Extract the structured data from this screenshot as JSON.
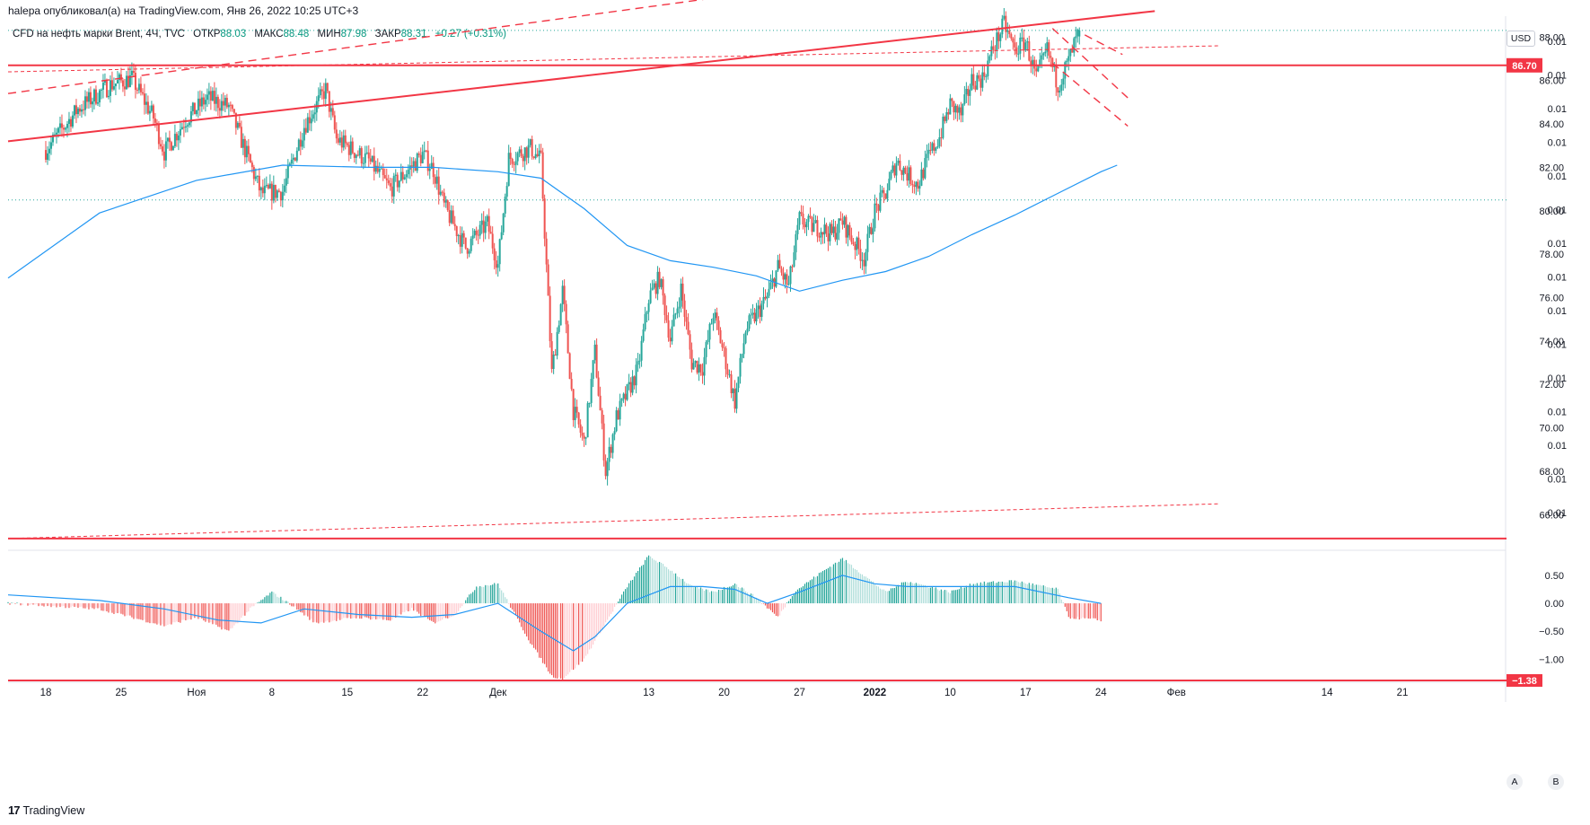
{
  "header": {
    "published": "halepa опубликовал(а) на TradingView.com, Янв 26, 2022 10:25 UTC+3",
    "symbol": "CFD на нефть марки Brent, 4Ч, TVC",
    "open_label": "ОТКР",
    "open": "88.03",
    "high_label": "МАКС",
    "high": "88.48",
    "low_label": "МИН",
    "low": "87.98",
    "close_label": "ЗАКР",
    "close": "88.31",
    "change": "+0.27 (+0.31%)"
  },
  "currency": "USD",
  "footer": {
    "logo_mark": "17",
    "logo_text": "TradingView",
    "btn_a": "A",
    "btn_b": "B"
  },
  "colors": {
    "up": "#26a69a",
    "down": "#ef5350",
    "ma": "#2196f3",
    "line": "#f23645",
    "text": "#131722"
  },
  "chart_data": {
    "type": "candlestick",
    "title": "CFD на нефть марки Brent, 4Ч, TVC",
    "price_axis": {
      "range": [
        64.4,
        88.8
      ],
      "ticks": [
        88.0,
        86.0,
        84.0,
        82.0,
        80.0,
        78.0,
        76.0,
        74.0,
        72.0,
        70.0,
        68.0,
        66.0
      ],
      "tick_labels": [
        "88.00",
        "86.00",
        "84.00",
        "82.00",
        "80.00",
        "78.00",
        "76.00",
        "74.00",
        "72.00",
        "70.00",
        "68.00",
        "66.00"
      ],
      "secondary_labels": [
        "0.01",
        "0.01",
        "0.01",
        "0.01",
        "0.01",
        "0.01",
        "0.01",
        "0.01",
        "0.01",
        "0.01",
        "0.01",
        "0.01",
        "0.01",
        "0.01",
        "0.01"
      ],
      "current_price_label": "86.70",
      "current_price": 86.7
    },
    "time_axis": {
      "labels": [
        "18",
        "25",
        "Ноя",
        "8",
        "15",
        "22",
        "Дек",
        "13",
        "20",
        "27",
        "2022",
        "10",
        "17",
        "24",
        "Фев",
        "14",
        "21"
      ],
      "label_pos": [
        0,
        7,
        14,
        21,
        28,
        35,
        42,
        56,
        63,
        70,
        77,
        84,
        91,
        98,
        105,
        119,
        126
      ],
      "day_range": [
        -3.5,
        135.5
      ],
      "candles_per_day": 6
    },
    "close_anchors": [
      [
        0,
        82.8
      ],
      [
        3,
        84.7
      ],
      [
        6,
        85.8
      ],
      [
        8,
        86.1
      ],
      [
        10,
        84.3
      ],
      [
        11,
        82.7
      ],
      [
        13,
        84.2
      ],
      [
        15,
        85.2
      ],
      [
        17,
        84.8
      ],
      [
        20,
        80.8
      ],
      [
        22,
        80.9
      ],
      [
        24,
        83.9
      ],
      [
        26,
        85.6
      ],
      [
        27,
        83.3
      ],
      [
        30,
        82.3
      ],
      [
        32,
        81.0
      ],
      [
        35,
        82.6
      ],
      [
        36,
        81.9
      ],
      [
        37,
        80.2
      ],
      [
        39,
        78.3
      ],
      [
        41,
        79.4
      ],
      [
        42,
        77.5
      ],
      [
        43,
        82.4
      ],
      [
        45,
        82.9
      ],
      [
        46,
        82.3
      ],
      [
        47,
        72.5
      ],
      [
        48,
        76.3
      ],
      [
        49,
        70.8
      ],
      [
        50,
        69.3
      ],
      [
        51,
        73.5
      ],
      [
        52,
        68.0
      ],
      [
        53,
        70.5
      ],
      [
        55,
        72.7
      ],
      [
        56,
        76.0
      ],
      [
        57,
        76.9
      ],
      [
        58,
        74.1
      ],
      [
        59,
        76.4
      ],
      [
        60,
        73.0
      ],
      [
        61,
        72.8
      ],
      [
        62,
        75.3
      ],
      [
        63,
        73.4
      ],
      [
        64,
        71.2
      ],
      [
        65,
        74.5
      ],
      [
        67,
        76.0
      ],
      [
        68,
        77.4
      ],
      [
        69,
        76.5
      ],
      [
        70,
        79.6
      ],
      [
        71,
        79.3
      ],
      [
        72,
        79.2
      ],
      [
        73,
        78.9
      ],
      [
        74,
        79.5
      ],
      [
        75,
        78.6
      ],
      [
        76,
        77.8
      ],
      [
        77,
        80.0
      ],
      [
        78,
        80.8
      ],
      [
        79,
        82.3
      ],
      [
        80,
        81.7
      ],
      [
        81,
        81.2
      ],
      [
        82,
        82.5
      ],
      [
        83,
        83.4
      ],
      [
        84,
        84.9
      ],
      [
        85,
        84.4
      ],
      [
        86,
        86.0
      ],
      [
        87,
        86.1
      ],
      [
        88,
        87.5
      ],
      [
        89,
        88.6
      ],
      [
        90,
        87.4
      ],
      [
        91,
        87.8
      ],
      [
        92,
        86.1
      ],
      [
        93,
        87.4
      ],
      [
        94,
        85.8
      ],
      [
        95,
        86.9
      ],
      [
        96,
        88.31
      ]
    ],
    "ma_points": [
      [
        -3.5,
        76.9
      ],
      [
        5,
        79.9
      ],
      [
        14,
        81.4
      ],
      [
        22,
        82.1
      ],
      [
        30,
        82.0
      ],
      [
        36,
        82.0
      ],
      [
        42,
        81.8
      ],
      [
        46,
        81.5
      ],
      [
        50,
        80.1
      ],
      [
        54,
        78.4
      ],
      [
        58,
        77.7
      ],
      [
        62,
        77.4
      ],
      [
        66,
        77.0
      ],
      [
        70,
        76.3
      ],
      [
        74,
        76.8
      ],
      [
        78,
        77.2
      ],
      [
        82,
        77.9
      ],
      [
        86,
        78.9
      ],
      [
        90,
        79.8
      ],
      [
        94,
        80.8
      ],
      [
        98,
        81.8
      ],
      [
        99.5,
        82.1
      ]
    ],
    "lines": [
      {
        "kind": "solid",
        "from": [
          -3.5,
          83.2
        ],
        "to": [
          103,
          89.2
        ]
      },
      {
        "kind": "dashed",
        "from": [
          -3.5,
          85.4
        ],
        "to": [
          65,
          90.0
        ]
      },
      {
        "kind": "dotted",
        "from": [
          -3.5,
          86.4
        ],
        "to": [
          109,
          87.6
        ]
      },
      {
        "kind": "dotted",
        "from": [
          -3.5,
          64.9
        ],
        "to": [
          109,
          66.5
        ]
      },
      {
        "kind": "dashed",
        "from": [
          93.5,
          88.4
        ],
        "to": [
          100.5,
          85.2
        ]
      },
      {
        "kind": "dashed",
        "from": [
          93.5,
          86.8
        ],
        "to": [
          100.5,
          83.9
        ]
      },
      {
        "kind": "dashed",
        "from": [
          96.5,
          88.1
        ],
        "to": [
          100,
          87.2
        ]
      }
    ],
    "horizontal_levels": [
      86.7,
      64.9
    ],
    "oscillator": {
      "type": "histogram+signal",
      "range": [
        -1.38,
        0.9
      ],
      "ticks": [
        0.5,
        0.0,
        -0.5,
        -1.0
      ],
      "tick_labels": [
        "0.50",
        "0.00",
        "−0.50",
        "−1.00"
      ],
      "level_label": "−1.38",
      "level": -1.38,
      "hist_anchors": [
        [
          -3.5,
          0.0
        ],
        [
          5,
          -0.1
        ],
        [
          8,
          -0.25
        ],
        [
          11,
          -0.4
        ],
        [
          14,
          -0.25
        ],
        [
          17,
          -0.5
        ],
        [
          19,
          -0.1
        ],
        [
          21,
          0.2
        ],
        [
          23,
          -0.05
        ],
        [
          25,
          -0.35
        ],
        [
          29,
          -0.25
        ],
        [
          32,
          -0.3
        ],
        [
          34,
          -0.1
        ],
        [
          36,
          -0.35
        ],
        [
          38,
          -0.2
        ],
        [
          40,
          0.3
        ],
        [
          42,
          0.35
        ],
        [
          43,
          0.0
        ],
        [
          45,
          -0.7
        ],
        [
          47,
          -1.3
        ],
        [
          48,
          -1.35
        ],
        [
          50,
          -1.0
        ],
        [
          52,
          -0.35
        ],
        [
          54,
          0.3
        ],
        [
          56,
          0.85
        ],
        [
          58,
          0.6
        ],
        [
          60,
          0.3
        ],
        [
          62,
          0.2
        ],
        [
          64,
          0.35
        ],
        [
          66,
          0.1
        ],
        [
          68,
          -0.25
        ],
        [
          69.5,
          0.2
        ],
        [
          72,
          0.55
        ],
        [
          74,
          0.8
        ],
        [
          76,
          0.5
        ],
        [
          78,
          0.2
        ],
        [
          80,
          0.4
        ],
        [
          82,
          0.3
        ],
        [
          84,
          0.2
        ],
        [
          86,
          0.35
        ],
        [
          90,
          0.4
        ],
        [
          94,
          0.25
        ],
        [
          95,
          -0.25
        ],
        [
          98,
          -0.3
        ]
      ],
      "signal_anchors": [
        [
          -3.5,
          0.15
        ],
        [
          5,
          0.05
        ],
        [
          11,
          -0.1
        ],
        [
          16,
          -0.3
        ],
        [
          20,
          -0.35
        ],
        [
          24,
          -0.1
        ],
        [
          29,
          -0.2
        ],
        [
          34,
          -0.25
        ],
        [
          38,
          -0.2
        ],
        [
          42,
          0.0
        ],
        [
          46,
          -0.5
        ],
        [
          49,
          -0.85
        ],
        [
          51,
          -0.6
        ],
        [
          54,
          0.0
        ],
        [
          58,
          0.3
        ],
        [
          61,
          0.3
        ],
        [
          64,
          0.25
        ],
        [
          67,
          0.0
        ],
        [
          70,
          0.2
        ],
        [
          74,
          0.5
        ],
        [
          77,
          0.35
        ],
        [
          80,
          0.3
        ],
        [
          84,
          0.3
        ],
        [
          90,
          0.3
        ],
        [
          95,
          0.1
        ],
        [
          98,
          0.0
        ]
      ]
    }
  }
}
